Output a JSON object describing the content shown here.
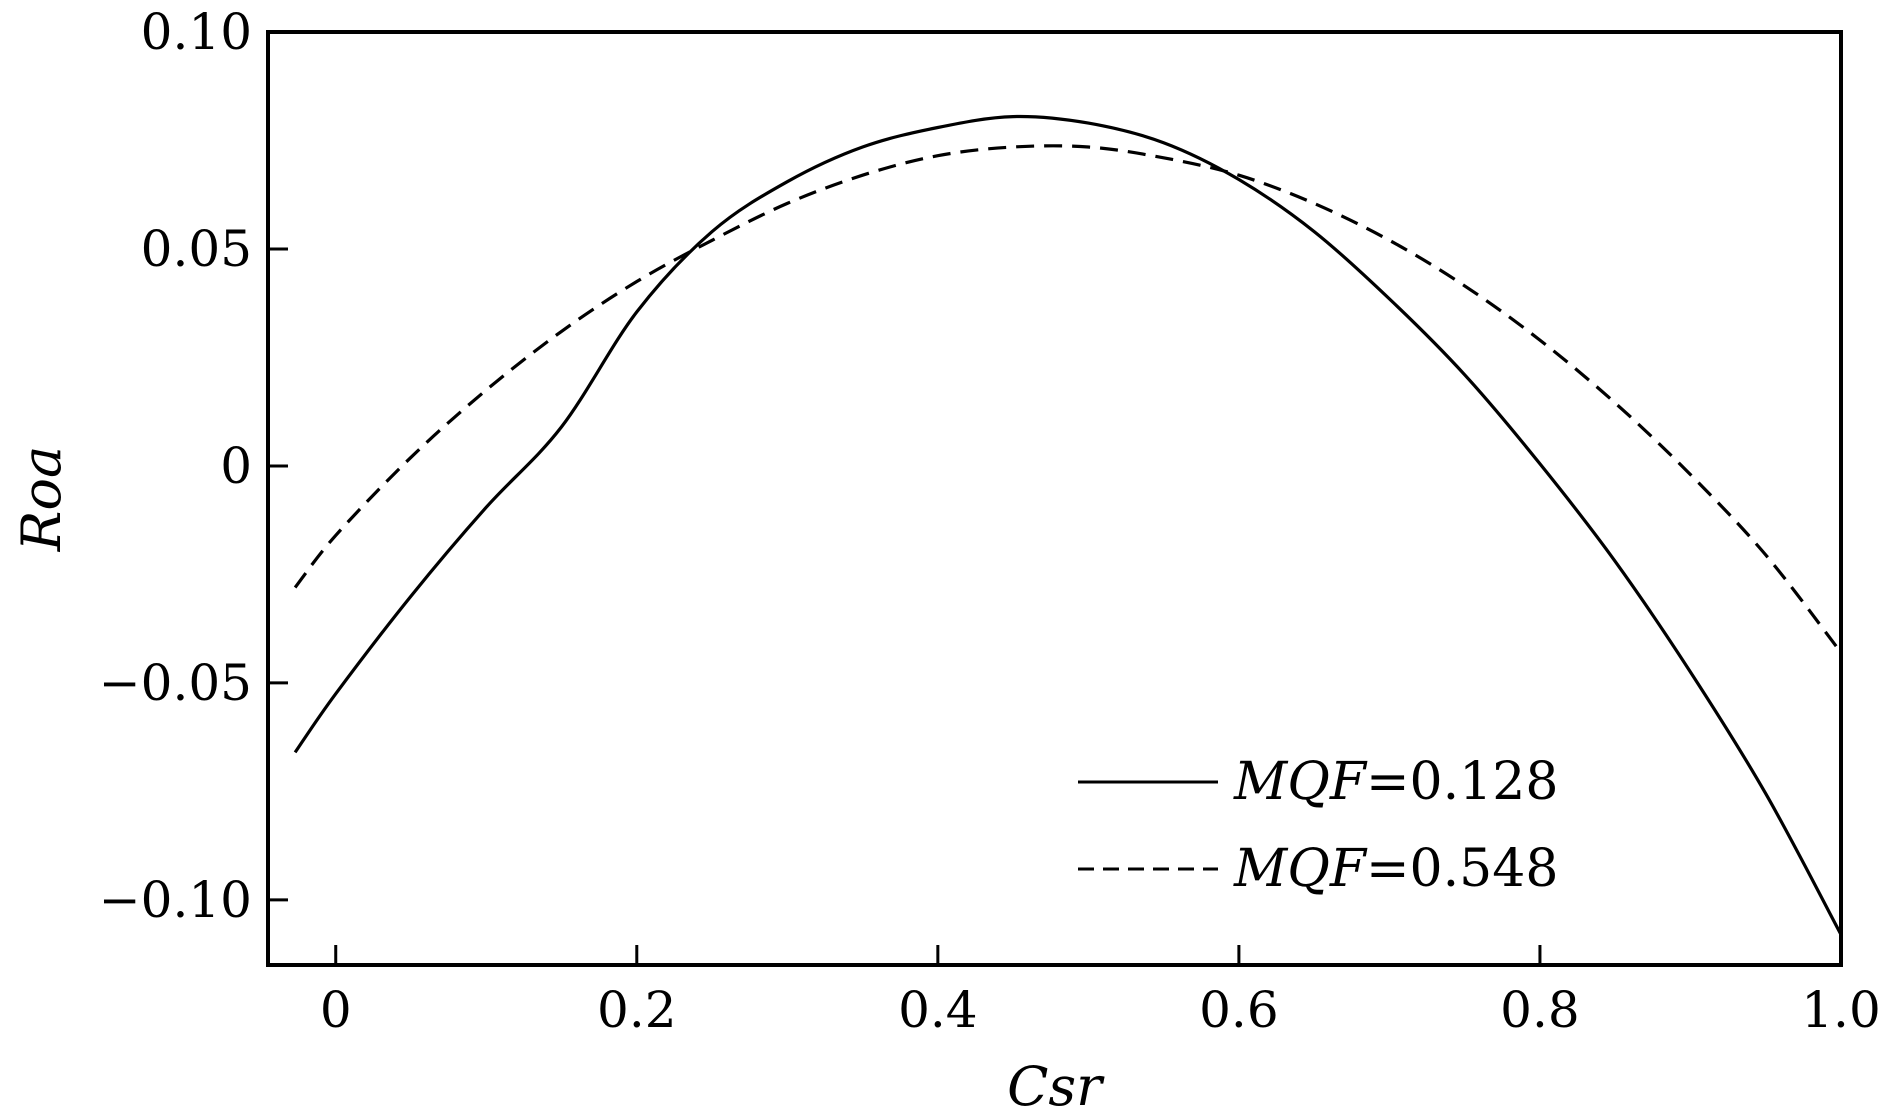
{
  "chart_data": {
    "type": "line",
    "xlabel": "Csr",
    "ylabel": "Roa",
    "xlim": [
      -0.045,
      1.0
    ],
    "ylim": [
      -0.115,
      0.1
    ],
    "x_ticks": [
      0,
      0.2,
      0.4,
      0.6,
      0.8,
      1.0
    ],
    "x_tick_labels": [
      "0",
      "0.2",
      "0.4",
      "0.6",
      "0.8",
      "1.0"
    ],
    "y_ticks": [
      -0.1,
      -0.05,
      0,
      0.05,
      0.1
    ],
    "y_tick_labels": [
      "−0.10",
      "−0.05",
      "0",
      "0.05",
      "0.10"
    ],
    "grid": false,
    "legend_position": "bottom-right",
    "series": [
      {
        "legend_var": "MQF",
        "legend_value": "=0.128",
        "style": "solid",
        "color": "#000000",
        "x": [
          -0.027,
          0.0,
          0.05,
          0.1,
          0.15,
          0.2,
          0.25,
          0.3,
          0.35,
          0.4,
          0.45,
          0.5,
          0.55,
          0.6,
          0.65,
          0.7,
          0.75,
          0.8,
          0.85,
          0.9,
          0.95,
          1.0
        ],
        "y": [
          -0.066,
          -0.0525,
          -0.03,
          -0.0095,
          0.009,
          0.0355,
          0.054,
          0.0655,
          0.0735,
          0.078,
          0.0805,
          0.079,
          0.0745,
          0.066,
          0.054,
          0.0385,
          0.021,
          0.0005,
          -0.022,
          -0.0475,
          -0.0755,
          -0.108
        ]
      },
      {
        "legend_var": "MQF",
        "legend_value": "=0.548",
        "style": "dashed",
        "color": "#000000",
        "x": [
          -0.027,
          0.0,
          0.05,
          0.1,
          0.15,
          0.2,
          0.25,
          0.3,
          0.35,
          0.4,
          0.45,
          0.5,
          0.55,
          0.6,
          0.65,
          0.7,
          0.75,
          0.8,
          0.85,
          0.9,
          0.95,
          1.0
        ],
        "y": [
          -0.028,
          -0.016,
          0.002,
          0.0175,
          0.031,
          0.0425,
          0.052,
          0.0605,
          0.067,
          0.0715,
          0.0735,
          0.0735,
          0.071,
          0.067,
          0.0605,
          0.052,
          0.0415,
          0.029,
          0.0145,
          -0.002,
          -0.0205,
          -0.043
        ]
      }
    ]
  }
}
